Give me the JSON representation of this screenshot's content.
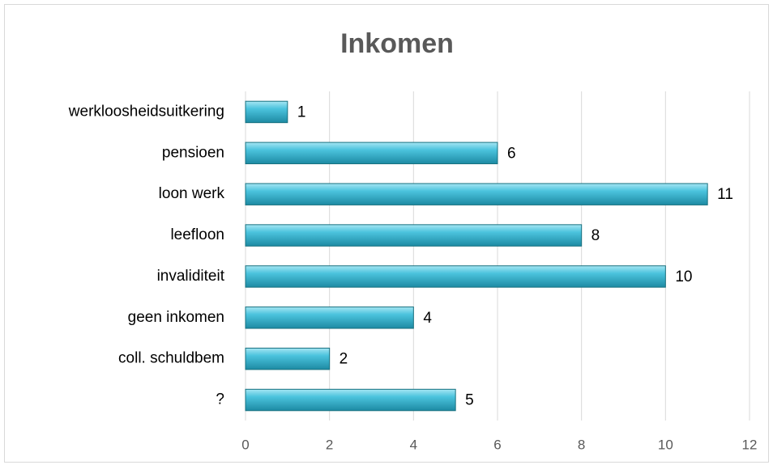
{
  "chart_data": {
    "type": "bar",
    "orientation": "horizontal",
    "title": "Inkomen",
    "categories": [
      "werkloosheidsuitkering",
      "pensioen",
      "loon werk",
      "leefloon",
      "invaliditeit",
      "geen inkomen",
      "coll. schuldbem",
      "?"
    ],
    "values": [
      1,
      6,
      11,
      8,
      10,
      4,
      2,
      5
    ],
    "color": "#4bc3dd",
    "xlim": [
      0,
      12
    ],
    "xticks": [
      0,
      2,
      4,
      6,
      8,
      10,
      12
    ],
    "grid": true
  }
}
